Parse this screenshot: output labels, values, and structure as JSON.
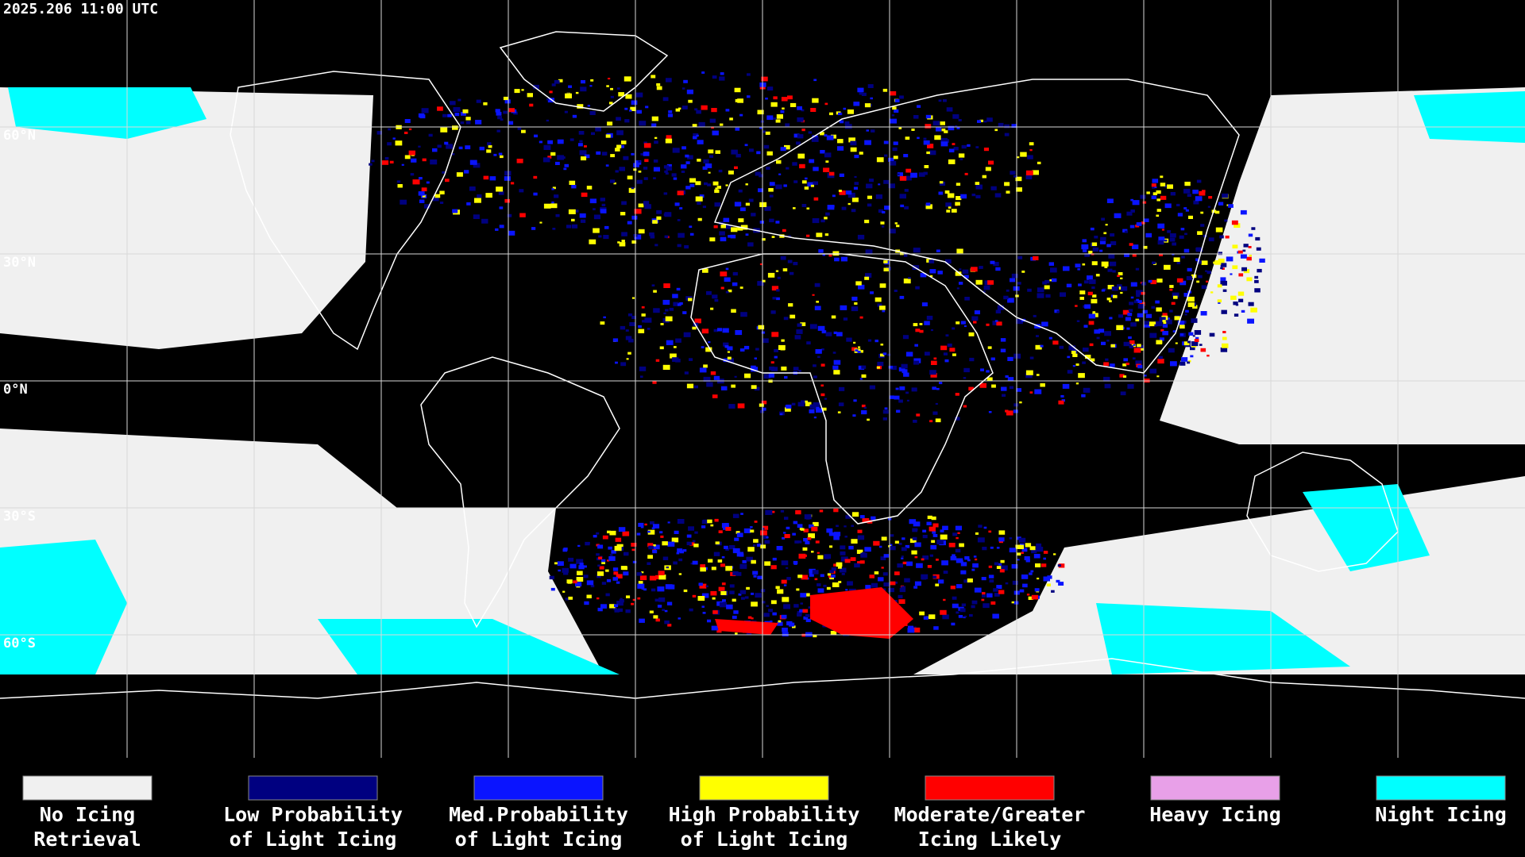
{
  "timestamp": "2025.206 11:00 UTC",
  "lat_labels": [
    "60°N",
    "30°N",
    "0°N",
    "30°S",
    "60°S"
  ],
  "legend": [
    {
      "label": [
        "No Icing",
        "Retrieval"
      ],
      "color": "#f0f0f0"
    },
    {
      "label": [
        "Low Probability",
        "of Light Icing"
      ],
      "color": "#000080"
    },
    {
      "label": [
        "Med.Probability",
        "of Light Icing"
      ],
      "color": "#0a14ff"
    },
    {
      "label": [
        "High Probability",
        "of Light Icing"
      ],
      "color": "#ffff00"
    },
    {
      "label": [
        "Moderate/Greater",
        "Icing Likely"
      ],
      "color": "#ff0000"
    },
    {
      "label": [
        "Heavy Icing"
      ],
      "color": "#e8a0e8"
    },
    {
      "label": [
        "Night Icing"
      ],
      "color": "#00ffff"
    }
  ]
}
